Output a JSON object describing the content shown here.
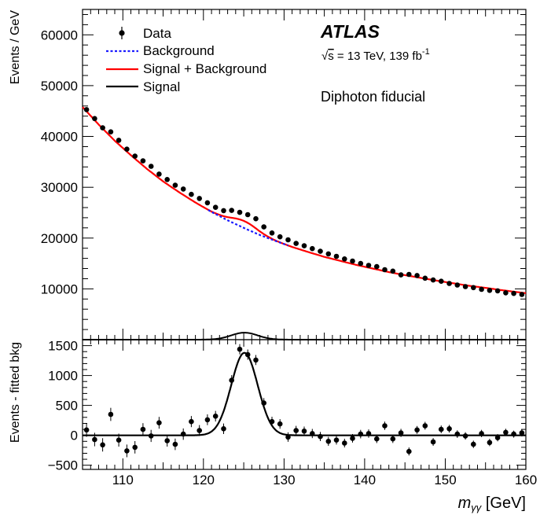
{
  "branding": {
    "experiment": "ATLAS",
    "energy_sqrt": "s",
    "energy_rest": " = 13 TeV, 139 fb",
    "lumi_exp": "-1",
    "region": "Diphoton fiducial"
  },
  "legend": {
    "data": "Data",
    "background": "Background",
    "sb": "Signal + Background",
    "signal": "Signal"
  },
  "axes": {
    "main_ylabel": "Events / GeV",
    "ratio_ylabel": "Events - fitted bkg",
    "xlabel_m": "m",
    "xlabel_sub": "γγ",
    "xlabel_unit": " [GeV]"
  },
  "colors": {
    "data": "#000000",
    "background": "#1a1aff",
    "sb": "#ff0000",
    "signal": "#000000"
  },
  "chart_data": [
    {
      "type": "scatter",
      "panel": "main",
      "xlim": [
        105,
        160
      ],
      "ylim": [
        0,
        65000
      ],
      "yticks": [
        10000,
        20000,
        30000,
        40000,
        50000,
        60000
      ],
      "xticks": [
        110,
        120,
        130,
        140,
        150,
        160
      ],
      "ylabel": "Events / GeV",
      "legend_position": "top-left",
      "data_x": [
        105.5,
        106.5,
        107.5,
        108.5,
        109.5,
        110.5,
        111.5,
        112.5,
        113.5,
        114.5,
        115.5,
        116.5,
        117.5,
        118.5,
        119.5,
        120.5,
        121.5,
        122.5,
        123.5,
        124.5,
        125.5,
        126.5,
        127.5,
        128.5,
        129.5,
        130.5,
        131.5,
        132.5,
        133.5,
        134.5,
        135.5,
        136.5,
        137.5,
        138.5,
        139.5,
        140.5,
        141.5,
        142.5,
        143.5,
        144.5,
        145.5,
        146.5,
        147.5,
        148.5,
        149.5,
        150.5,
        151.5,
        152.5,
        153.5,
        154.5,
        155.5,
        156.5,
        157.5,
        158.5,
        159.5
      ],
      "data_y": [
        45280,
        43520,
        41700,
        40900,
        39250,
        37500,
        36120,
        35200,
        34120,
        32600,
        31530,
        30400,
        29650,
        28600,
        27800,
        26950,
        26050,
        25400,
        25450,
        25050,
        24600,
        23800,
        22200,
        21000,
        20250,
        19650,
        18950,
        18480,
        17920,
        17390,
        16880,
        16400,
        15900,
        15480,
        15000,
        14630,
        14380,
        13780,
        13500,
        12750,
        12850,
        12630,
        12100,
        11750,
        11500,
        11060,
        10750,
        10450,
        10250,
        9900,
        9710,
        9610,
        9230,
        9100,
        8900
      ],
      "background_x": [
        105,
        107,
        109,
        111,
        113,
        115,
        117,
        119,
        121,
        123,
        125,
        127,
        129,
        131,
        133,
        135,
        137,
        139,
        141,
        143,
        145,
        147,
        149,
        151,
        153,
        155,
        157,
        159,
        160
      ],
      "background_y": [
        45800,
        42350,
        39150,
        36300,
        33600,
        31150,
        29000,
        27000,
        25150,
        23500,
        22000,
        20600,
        19400,
        18250,
        17250,
        16300,
        15500,
        14700,
        14000,
        13300,
        12700,
        12150,
        11600,
        11100,
        10600,
        10200,
        9750,
        9350,
        9150
      ],
      "signal_peak_x": 125.09,
      "signal_peak_y": 1380,
      "signal_sigma": 1.65
    },
    {
      "type": "scatter",
      "panel": "ratio",
      "xlim": [
        105,
        160
      ],
      "ylim": [
        -570,
        1600
      ],
      "yticks": [
        -500,
        0,
        500,
        1000,
        1500
      ],
      "xticks": [
        110,
        120,
        130,
        140,
        150,
        160
      ],
      "xlabel": "m_γγ [GeV]",
      "ylabel": "Events - fitted bkg",
      "x": [
        105.5,
        106.5,
        107.5,
        108.5,
        109.5,
        110.5,
        111.5,
        112.5,
        113.5,
        114.5,
        115.5,
        116.5,
        117.5,
        118.5,
        119.5,
        120.5,
        121.5,
        122.5,
        123.5,
        124.5,
        125.5,
        126.5,
        127.5,
        128.5,
        129.5,
        130.5,
        131.5,
        132.5,
        133.5,
        134.5,
        135.5,
        136.5,
        137.5,
        138.5,
        139.5,
        140.5,
        141.5,
        142.5,
        143.5,
        144.5,
        145.5,
        146.5,
        147.5,
        148.5,
        149.5,
        150.5,
        151.5,
        152.5,
        153.5,
        154.5,
        155.5,
        156.5,
        157.5,
        158.5,
        159.5
      ],
      "y": [
        90,
        -70,
        -160,
        350,
        -80,
        -260,
        -200,
        100,
        -10,
        210,
        -90,
        -150,
        20,
        230,
        80,
        260,
        320,
        110,
        920,
        1440,
        1350,
        1260,
        540,
        230,
        190,
        -30,
        80,
        70,
        30,
        -20,
        -100,
        -80,
        -130,
        -50,
        20,
        30,
        -60,
        160,
        -60,
        40,
        -270,
        90,
        160,
        -110,
        100,
        110,
        20,
        -10,
        -150,
        30,
        -120,
        -40,
        50,
        20,
        40
      ],
      "err": [
        115,
        113,
        112,
        110,
        108,
        106,
        104,
        103,
        101,
        99,
        98,
        96,
        95,
        93,
        92,
        90,
        89,
        88,
        87,
        86,
        85,
        84,
        83,
        81,
        80,
        79,
        78,
        77,
        77,
        76,
        75,
        74,
        73,
        72,
        71,
        70,
        70,
        69,
        68,
        68,
        67,
        66,
        66,
        65,
        64,
        64,
        63,
        62,
        62,
        61,
        61,
        60,
        60,
        59,
        59
      ]
    }
  ]
}
